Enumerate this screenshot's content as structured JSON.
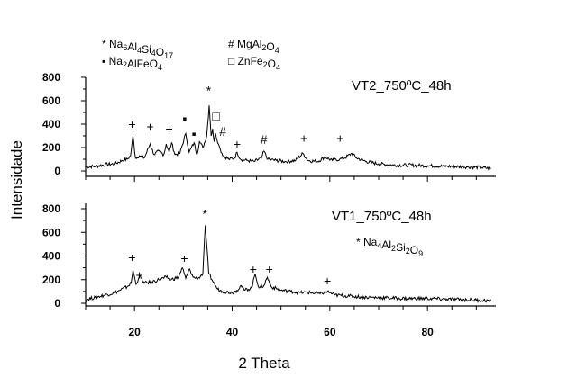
{
  "chart_data": [
    {
      "type": "line",
      "panel": "top",
      "label": "VT2_750ºC_48h",
      "xlim": [
        10,
        94
      ],
      "ylim": [
        0,
        800
      ],
      "yticks": [
        0,
        200,
        400,
        600,
        800
      ],
      "legend": [
        {
          "marker": "*",
          "formula": [
            [
              "Na",
              ""
            ],
            [
              "6",
              ""
            ],
            [
              "Al",
              ""
            ],
            [
              "4",
              ""
            ],
            [
              "Si",
              ""
            ],
            [
              "4",
              ""
            ],
            [
              "O",
              ""
            ],
            [
              "17",
              ""
            ]
          ]
        },
        {
          "marker": "#",
          "formula": [
            [
              "Mg",
              ""
            ],
            [
              "Al",
              ""
            ],
            [
              "2",
              ""
            ],
            [
              "O",
              ""
            ],
            [
              "4",
              ""
            ]
          ]
        },
        {
          "marker": "▪",
          "formula": [
            [
              "Na",
              ""
            ],
            [
              "2",
              ""
            ],
            [
              "AlFeO",
              ""
            ],
            [
              "4",
              ""
            ]
          ]
        },
        {
          "marker": "□",
          "formula": [
            [
              "ZnFe",
              ""
            ],
            [
              "2",
              ""
            ],
            [
              "O",
              ""
            ],
            [
              "4",
              ""
            ]
          ]
        }
      ],
      "trace": [
        [
          10,
          35
        ],
        [
          12,
          40
        ],
        [
          14,
          55
        ],
        [
          16,
          60
        ],
        [
          17.5,
          90
        ],
        [
          18.5,
          100
        ],
        [
          19.2,
          130
        ],
        [
          19.7,
          300
        ],
        [
          20.2,
          110
        ],
        [
          21,
          130
        ],
        [
          22,
          110
        ],
        [
          23.2,
          230
        ],
        [
          24,
          140
        ],
        [
          25,
          170
        ],
        [
          26,
          140
        ],
        [
          26.5,
          230
        ],
        [
          27.1,
          160
        ],
        [
          27.6,
          240
        ],
        [
          28.3,
          140
        ],
        [
          29.3,
          150
        ],
        [
          30.5,
          320
        ],
        [
          31.2,
          160
        ],
        [
          32.2,
          240
        ],
        [
          32.8,
          140
        ],
        [
          33.3,
          250
        ],
        [
          34,
          200
        ],
        [
          34.8,
          300
        ],
        [
          35.3,
          560
        ],
        [
          35.7,
          300
        ],
        [
          36,
          360
        ],
        [
          36.3,
          250
        ],
        [
          36.6,
          320
        ],
        [
          37.2,
          230
        ],
        [
          37.6,
          180
        ],
        [
          38.2,
          130
        ],
        [
          39.3,
          100
        ],
        [
          40.5,
          110
        ],
        [
          41,
          160
        ],
        [
          41.7,
          100
        ],
        [
          43,
          90
        ],
        [
          44.5,
          80
        ],
        [
          46,
          110
        ],
        [
          46.5,
          170
        ],
        [
          47.3,
          100
        ],
        [
          49,
          90
        ],
        [
          51,
          80
        ],
        [
          53,
          90
        ],
        [
          54.5,
          150
        ],
        [
          55.5,
          90
        ],
        [
          57.5,
          80
        ],
        [
          59,
          120
        ],
        [
          60.5,
          90
        ],
        [
          62,
          100
        ],
        [
          63,
          110
        ],
        [
          64.5,
          150
        ],
        [
          65.5,
          110
        ],
        [
          67.5,
          80
        ],
        [
          70,
          60
        ],
        [
          73,
          50
        ],
        [
          76,
          50
        ],
        [
          80,
          45
        ],
        [
          84,
          40
        ],
        [
          88,
          35
        ],
        [
          91,
          30
        ],
        [
          93,
          20
        ]
      ],
      "markers": [
        {
          "symbol": "+",
          "x": 19.5,
          "y": 400
        },
        {
          "symbol": "+",
          "x": 23.2,
          "y": 380
        },
        {
          "symbol": "+",
          "x": 27.1,
          "y": 360
        },
        {
          "symbol": "▪",
          "x": 30.3,
          "y": 450
        },
        {
          "symbol": "▪",
          "x": 32.2,
          "y": 320
        },
        {
          "symbol": "*",
          "x": 35.2,
          "y": 690
        },
        {
          "symbol": "□",
          "x": 36.7,
          "y": 470
        },
        {
          "symbol": "#",
          "x": 38.1,
          "y": 340
        },
        {
          "symbol": "+",
          "x": 41.0,
          "y": 230
        },
        {
          "symbol": "#",
          "x": 46.5,
          "y": 270
        },
        {
          "symbol": "+",
          "x": 54.7,
          "y": 280
        },
        {
          "symbol": "+",
          "x": 62.1,
          "y": 280
        }
      ]
    },
    {
      "type": "line",
      "panel": "bottom",
      "label": "VT1_750ºC_48h",
      "xlim": [
        10,
        94
      ],
      "ylim": [
        0,
        800
      ],
      "yticks": [
        0,
        200,
        400,
        600,
        800
      ],
      "xticks": [
        20,
        40,
        60,
        80
      ],
      "xlabel": "2 Theta",
      "legend": [
        {
          "marker": "*",
          "formula": [
            [
              "Na",
              ""
            ],
            [
              "4",
              ""
            ],
            [
              "Al",
              ""
            ],
            [
              "2",
              ""
            ],
            [
              "Si",
              ""
            ],
            [
              "2",
              ""
            ],
            [
              "O",
              ""
            ],
            [
              "9",
              ""
            ]
          ]
        }
      ],
      "trace": [
        [
          10,
          30
        ],
        [
          12,
          50
        ],
        [
          14,
          70
        ],
        [
          16,
          90
        ],
        [
          17,
          110
        ],
        [
          18.5,
          140
        ],
        [
          19.3,
          170
        ],
        [
          19.7,
          280
        ],
        [
          20.3,
          160
        ],
        [
          21,
          230
        ],
        [
          22,
          170
        ],
        [
          23.5,
          180
        ],
        [
          25,
          200
        ],
        [
          26.5,
          220
        ],
        [
          27.5,
          200
        ],
        [
          29,
          220
        ],
        [
          29.8,
          300
        ],
        [
          30.5,
          210
        ],
        [
          31.3,
          290
        ],
        [
          32,
          220
        ],
        [
          33,
          210
        ],
        [
          34,
          250
        ],
        [
          34.5,
          660
        ],
        [
          35.2,
          250
        ],
        [
          36,
          190
        ],
        [
          37,
          120
        ],
        [
          38,
          100
        ],
        [
          40,
          90
        ],
        [
          41,
          110
        ],
        [
          41.8,
          150
        ],
        [
          42.5,
          110
        ],
        [
          44,
          130
        ],
        [
          44.7,
          250
        ],
        [
          45.5,
          130
        ],
        [
          46.5,
          150
        ],
        [
          47.2,
          220
        ],
        [
          48,
          140
        ],
        [
          50,
          110
        ],
        [
          52,
          100
        ],
        [
          54,
          90
        ],
        [
          56,
          90
        ],
        [
          58,
          80
        ],
        [
          59.5,
          100
        ],
        [
          61,
          70
        ],
        [
          64,
          60
        ],
        [
          68,
          50
        ],
        [
          72,
          45
        ],
        [
          76,
          40
        ],
        [
          80,
          40
        ],
        [
          84,
          35
        ],
        [
          88,
          30
        ],
        [
          91,
          25
        ],
        [
          93,
          20
        ]
      ],
      "markers": [
        {
          "symbol": "*",
          "x": 34.4,
          "y": 760
        },
        {
          "symbol": "+",
          "x": 19.5,
          "y": 390
        },
        {
          "symbol": "+",
          "x": 21.0,
          "y": 240
        },
        {
          "symbol": "+",
          "x": 30.2,
          "y": 380
        },
        {
          "symbol": "+",
          "x": 44.3,
          "y": 290
        },
        {
          "symbol": "+",
          "x": 47.6,
          "y": 290
        },
        {
          "symbol": "+",
          "x": 59.5,
          "y": 190
        }
      ]
    }
  ],
  "ylabel": "Intensidade"
}
